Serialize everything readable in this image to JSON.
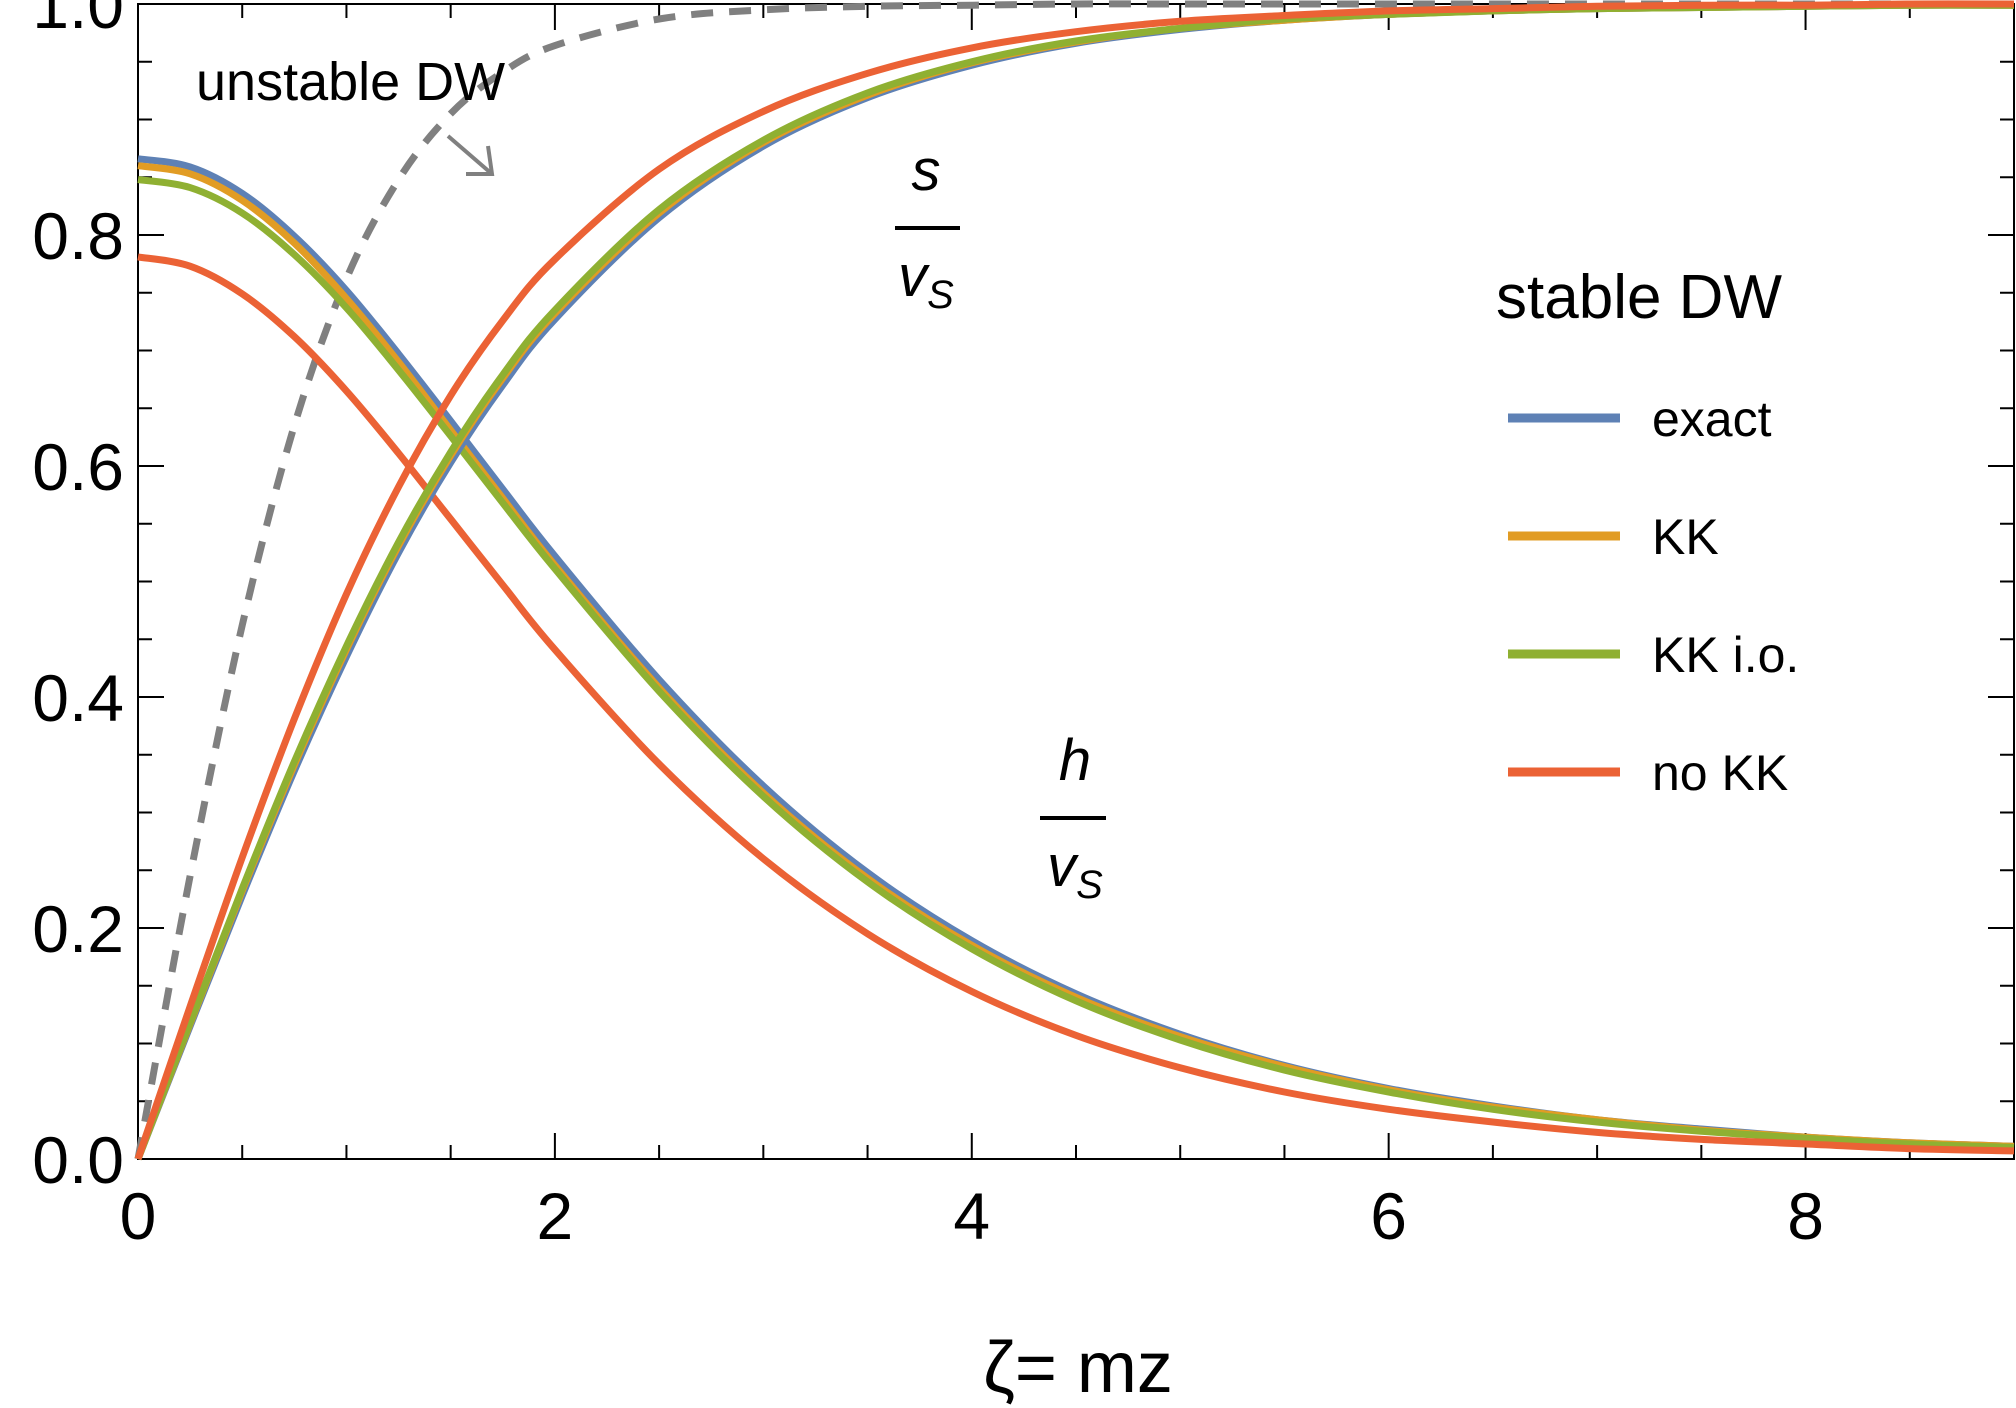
{
  "chart_data": {
    "type": "line",
    "xlabel": "ζ= mz",
    "ylabel": "",
    "xlim": [
      0,
      9
    ],
    "ylim": [
      0,
      1.0
    ],
    "x_ticks": [
      0,
      2,
      4,
      6,
      8
    ],
    "x_tick_labels": [
      "0",
      "2",
      "4",
      "6",
      "8"
    ],
    "y_ticks": [
      0,
      0.2,
      0.4,
      0.6,
      0.8,
      1.0
    ],
    "y_tick_labels": [
      "0.0",
      "0.2",
      "0.4",
      "0.6",
      "0.8",
      "1.0"
    ],
    "grid": false,
    "legend": {
      "title": "stable DW",
      "position": "right",
      "entries": [
        {
          "label": "exact",
          "color": "#5E81B5"
        },
        {
          "label": "KK",
          "color": "#E19C24"
        },
        {
          "label": "KK i.o.",
          "color": "#8FB032"
        },
        {
          "label": "no KK",
          "color": "#EB6235"
        }
      ]
    },
    "annotations": {
      "unstable": "unstable DW",
      "s_numerator": "s",
      "h_numerator": "h",
      "denominator_main": "v",
      "denominator_sub": "S"
    },
    "x": [
      0,
      0.25,
      0.5,
      0.75,
      1,
      1.25,
      1.5,
      1.75,
      2,
      2.5,
      3,
      3.5,
      4,
      4.5,
      5,
      5.5,
      6,
      6.5,
      7,
      7.5,
      8,
      8.5,
      9
    ],
    "series": [
      {
        "group": "s",
        "legend": "exact",
        "color": "#5E81B5",
        "dashed": false,
        "width": 7,
        "values": [
          0,
          0.115,
          0.228,
          0.336,
          0.435,
          0.525,
          0.603,
          0.67,
          0.727,
          0.815,
          0.877,
          0.919,
          0.947,
          0.966,
          0.978,
          0.986,
          0.991,
          0.994,
          0.996,
          0.997,
          0.998,
          0.999,
          0.999
        ]
      },
      {
        "group": "s",
        "legend": "KK",
        "color": "#E19C24",
        "dashed": false,
        "width": 7,
        "values": [
          0,
          0.117,
          0.232,
          0.341,
          0.441,
          0.531,
          0.609,
          0.676,
          0.732,
          0.819,
          0.88,
          0.921,
          0.949,
          0.967,
          0.979,
          0.986,
          0.991,
          0.994,
          0.996,
          0.997,
          0.998,
          0.999,
          0.999
        ]
      },
      {
        "group": "s",
        "legend": "KK i.o.",
        "color": "#8FB032",
        "dashed": false,
        "width": 7,
        "values": [
          0,
          0.118,
          0.234,
          0.344,
          0.444,
          0.534,
          0.612,
          0.679,
          0.735,
          0.822,
          0.882,
          0.923,
          0.95,
          0.968,
          0.979,
          0.987,
          0.991,
          0.994,
          0.996,
          0.997,
          0.998,
          0.999,
          0.999
        ]
      },
      {
        "group": "s",
        "legend": "no KK",
        "color": "#EB6235",
        "dashed": false,
        "width": 7,
        "values": [
          0,
          0.132,
          0.261,
          0.381,
          0.489,
          0.582,
          0.661,
          0.726,
          0.779,
          0.857,
          0.907,
          0.94,
          0.962,
          0.976,
          0.985,
          0.99,
          0.994,
          0.996,
          0.998,
          0.999,
          0.999,
          1.0,
          1.0
        ]
      },
      {
        "group": "unstable",
        "legend": "",
        "color": "#808080",
        "dashed": true,
        "width": 7,
        "values": [
          0,
          0.245,
          0.462,
          0.635,
          0.762,
          0.848,
          0.905,
          0.941,
          0.964,
          0.987,
          0.995,
          0.998,
          0.999,
          1.0,
          1.0,
          1.0,
          1.0,
          1.0,
          1.0,
          1.0,
          1.0,
          1.0,
          1.0
        ]
      },
      {
        "group": "h",
        "legend": "exact",
        "color": "#5E81B5",
        "dashed": false,
        "width": 7,
        "values": [
          0.866,
          0.859,
          0.836,
          0.799,
          0.752,
          0.697,
          0.639,
          0.58,
          0.522,
          0.415,
          0.323,
          0.248,
          0.189,
          0.143,
          0.108,
          0.081,
          0.061,
          0.046,
          0.034,
          0.026,
          0.019,
          0.014,
          0.011
        ]
      },
      {
        "group": "h",
        "legend": "KK",
        "color": "#E19C24",
        "dashed": false,
        "width": 7,
        "values": [
          0.86,
          0.853,
          0.83,
          0.793,
          0.745,
          0.69,
          0.631,
          0.572,
          0.514,
          0.408,
          0.317,
          0.243,
          0.185,
          0.14,
          0.106,
          0.08,
          0.06,
          0.045,
          0.034,
          0.025,
          0.019,
          0.014,
          0.011
        ]
      },
      {
        "group": "h",
        "legend": "KK i.o.",
        "color": "#8FB032",
        "dashed": false,
        "width": 7,
        "values": [
          0.848,
          0.841,
          0.819,
          0.783,
          0.737,
          0.683,
          0.626,
          0.568,
          0.511,
          0.405,
          0.314,
          0.24,
          0.182,
          0.137,
          0.103,
          0.077,
          0.058,
          0.043,
          0.032,
          0.024,
          0.018,
          0.013,
          0.01
        ]
      },
      {
        "group": "h",
        "legend": "no KK",
        "color": "#EB6235",
        "dashed": false,
        "width": 7,
        "values": [
          0.781,
          0.773,
          0.749,
          0.712,
          0.665,
          0.611,
          0.554,
          0.497,
          0.441,
          0.342,
          0.26,
          0.195,
          0.145,
          0.107,
          0.079,
          0.058,
          0.043,
          0.032,
          0.023,
          0.017,
          0.013,
          0.009,
          0.007
        ]
      }
    ]
  }
}
